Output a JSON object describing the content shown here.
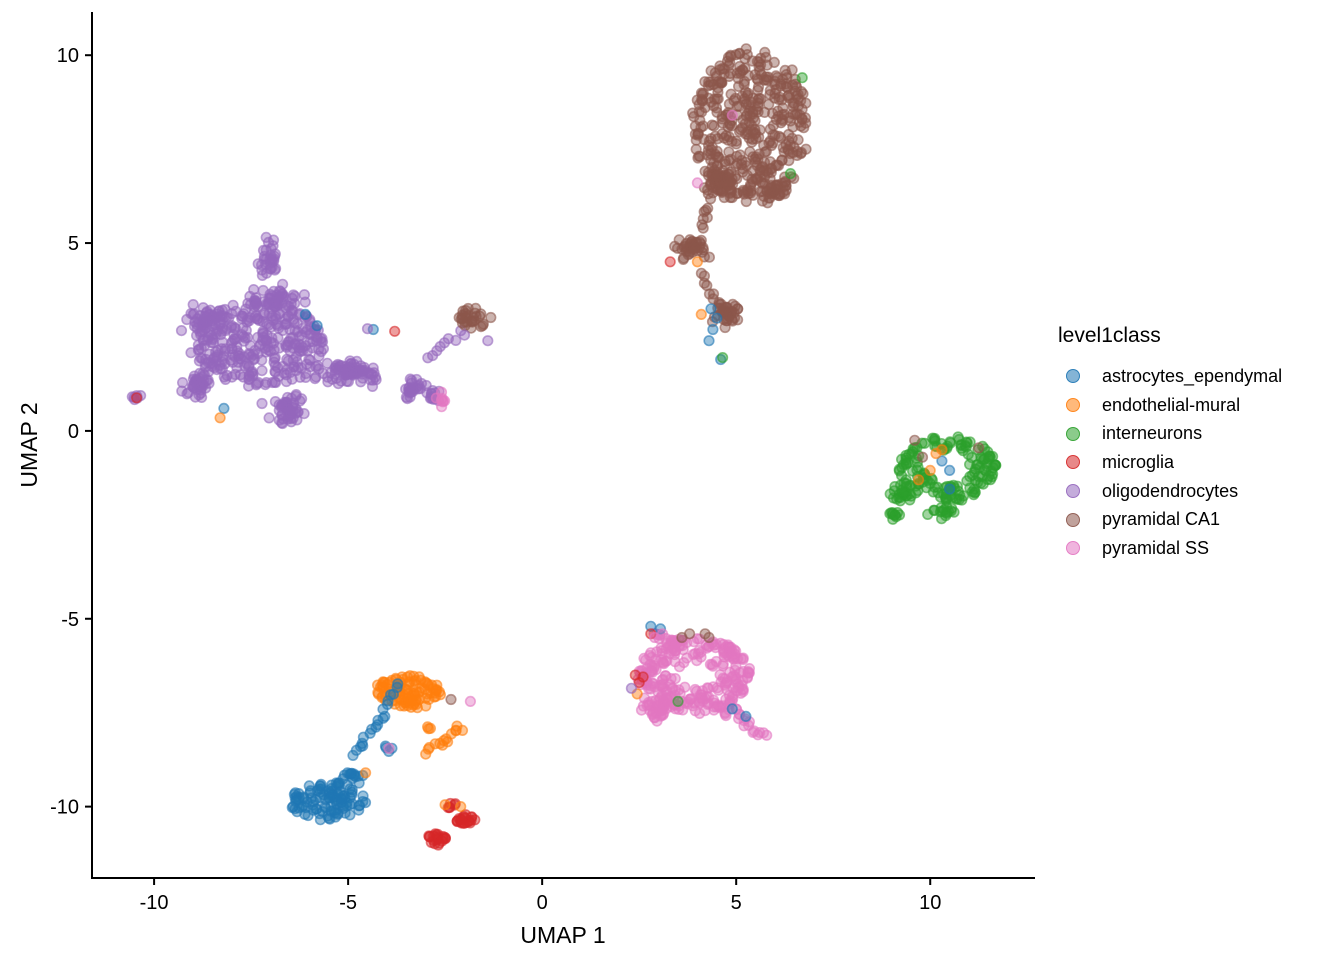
{
  "chart_data": {
    "type": "scatter",
    "subtype": "umap-embedding",
    "title": "",
    "xlabel": "UMAP 1",
    "ylabel": "UMAP 2",
    "xlim": [
      -11.6,
      12.7
    ],
    "ylim": [
      -11.9,
      11.15
    ],
    "x_ticks": [
      -10,
      -5,
      0,
      5,
      10
    ],
    "y_ticks": [
      -10,
      -5,
      0,
      5,
      10
    ],
    "grid": false,
    "background": "#ffffff",
    "axis_color": "#000000",
    "legend_title": "level1class",
    "legend_position": "right",
    "classes": [
      {
        "name": "astrocytes_ependymal",
        "color": "#1f77b4"
      },
      {
        "name": "endothelial-mural",
        "color": "#ff7f0e"
      },
      {
        "name": "interneurons",
        "color": "#2ca02c"
      },
      {
        "name": "microglia",
        "color": "#d62728"
      },
      {
        "name": "oligodendrocytes",
        "color": "#9467bd"
      },
      {
        "name": "pyramidal CA1",
        "color": "#8c564b"
      },
      {
        "name": "pyramidal SS",
        "color": "#e377c2"
      }
    ],
    "clusters": [
      {
        "class": "oligodendrocytes",
        "shape": "disk",
        "cx": -7.3,
        "cy": 2.3,
        "rx": 1.7,
        "ry": 1.15,
        "n": 300
      },
      {
        "class": "oligodendrocytes",
        "shape": "blob",
        "cx": -8.6,
        "cy": 2.9,
        "rx": 0.75,
        "ry": 0.55,
        "n": 55
      },
      {
        "class": "oligodendrocytes",
        "shape": "blob",
        "cx": -7.0,
        "cy": 4.6,
        "rx": 0.4,
        "ry": 0.6,
        "n": 30
      },
      {
        "class": "oligodendrocytes",
        "shape": "blob",
        "cx": -8.9,
        "cy": 1.2,
        "rx": 0.6,
        "ry": 0.45,
        "n": 40
      },
      {
        "class": "oligodendrocytes",
        "shape": "blob",
        "cx": -6.5,
        "cy": 0.6,
        "rx": 0.7,
        "ry": 0.5,
        "n": 50
      },
      {
        "class": "oligodendrocytes",
        "shape": "blob",
        "cx": -6.9,
        "cy": 3.5,
        "rx": 0.9,
        "ry": 0.45,
        "n": 55
      },
      {
        "class": "oligodendrocytes",
        "shape": "blob",
        "cx": -5.0,
        "cy": 1.6,
        "rx": 1.1,
        "ry": 0.4,
        "n": 85
      },
      {
        "class": "oligodendrocytes",
        "shape": "blob",
        "cx": -3.3,
        "cy": 1.15,
        "rx": 0.45,
        "ry": 0.35,
        "n": 25
      },
      {
        "class": "oligodendrocytes",
        "shape": "blob",
        "cx": -2.8,
        "cy": 0.95,
        "rx": 0.3,
        "ry": 0.3,
        "n": 12
      },
      {
        "class": "oligodendrocytes",
        "shape": "blob",
        "cx": -10.5,
        "cy": 0.9,
        "rx": 0.22,
        "ry": 0.12,
        "n": 6
      },
      {
        "class": "oligodendrocytes",
        "shape": "line",
        "x1": -2.95,
        "y1": 1.95,
        "x2": -2.15,
        "y2": 2.6,
        "jitter": 0.12,
        "n": 8
      },
      {
        "class": "pyramidal SS",
        "shape": "blob",
        "cx": -2.55,
        "cy": 0.82,
        "rx": 0.22,
        "ry": 0.28,
        "n": 7
      },
      {
        "class": "pyramidal CA1",
        "shape": "disk",
        "cx": 5.35,
        "cy": 8.1,
        "rx": 1.5,
        "ry": 2.0,
        "n": 400
      },
      {
        "class": "pyramidal CA1",
        "shape": "blob",
        "cx": 4.6,
        "cy": 6.6,
        "rx": 0.5,
        "ry": 0.55,
        "n": 45
      },
      {
        "class": "pyramidal CA1",
        "shape": "blob",
        "cx": 5.9,
        "cy": 6.4,
        "rx": 0.6,
        "ry": 0.4,
        "n": 35
      },
      {
        "class": "pyramidal CA1",
        "shape": "blob",
        "cx": 3.9,
        "cy": 4.85,
        "rx": 0.55,
        "ry": 0.4,
        "n": 40
      },
      {
        "class": "pyramidal CA1",
        "shape": "line",
        "x1": 4.1,
        "y1": 5.4,
        "x2": 4.3,
        "y2": 6.1,
        "jitter": 0.15,
        "n": 8
      },
      {
        "class": "pyramidal CA1",
        "shape": "blob",
        "cx": 4.75,
        "cy": 3.1,
        "rx": 0.55,
        "ry": 0.45,
        "n": 40
      },
      {
        "class": "pyramidal CA1",
        "shape": "line",
        "x1": 4.1,
        "y1": 4.2,
        "x2": 4.4,
        "y2": 3.5,
        "jitter": 0.12,
        "n": 7
      },
      {
        "class": "pyramidal CA1",
        "shape": "blob",
        "cx": -1.8,
        "cy": 3.0,
        "rx": 0.5,
        "ry": 0.35,
        "n": 30
      },
      {
        "class": "interneurons",
        "shape": "ring",
        "cx": 10.45,
        "cy": -1.0,
        "rx": 1.25,
        "ry": 0.85,
        "hole": 0.4,
        "n": 150
      },
      {
        "class": "interneurons",
        "shape": "blob",
        "cx": 9.3,
        "cy": -1.6,
        "rx": 0.4,
        "ry": 0.35,
        "n": 25
      },
      {
        "class": "interneurons",
        "shape": "blob",
        "cx": 9.05,
        "cy": -2.2,
        "rx": 0.28,
        "ry": 0.18,
        "n": 10
      },
      {
        "class": "interneurons",
        "shape": "blob",
        "cx": 10.35,
        "cy": -2.15,
        "rx": 0.5,
        "ry": 0.2,
        "n": 16
      },
      {
        "class": "pyramidal SS",
        "shape": "ring",
        "cx": 3.9,
        "cy": -6.5,
        "rx": 1.45,
        "ry": 1.0,
        "hole": 0.3,
        "n": 250
      },
      {
        "class": "pyramidal SS",
        "shape": "blob",
        "cx": 2.95,
        "cy": -7.4,
        "rx": 0.5,
        "ry": 0.45,
        "n": 40
      },
      {
        "class": "pyramidal SS",
        "shape": "line",
        "x1": 4.6,
        "y1": -7.3,
        "x2": 5.7,
        "y2": -8.1,
        "jitter": 0.22,
        "n": 22
      },
      {
        "class": "pyramidal SS",
        "shape": "blob",
        "cx": 3.4,
        "cy": -5.7,
        "rx": 0.35,
        "ry": 0.25,
        "n": 18
      },
      {
        "class": "pyramidal SS",
        "shape": "blob",
        "cx": 3.0,
        "cy": -5.45,
        "rx": 0.18,
        "ry": 0.12,
        "n": 5
      },
      {
        "class": "endothelial-mural",
        "shape": "disk",
        "cx": -3.5,
        "cy": -6.95,
        "rx": 0.85,
        "ry": 0.45,
        "n": 100
      },
      {
        "class": "endothelial-mural",
        "shape": "line",
        "x1": -2.95,
        "y1": -8.5,
        "x2": -2.05,
        "y2": -7.9,
        "jitter": 0.14,
        "n": 14
      },
      {
        "class": "endothelial-mural",
        "shape": "blob",
        "cx": -2.9,
        "cy": -7.88,
        "rx": 0.12,
        "ry": 0.12,
        "n": 3
      },
      {
        "class": "astrocytes_ependymal",
        "shape": "disk",
        "cx": -5.55,
        "cy": -9.85,
        "rx": 0.95,
        "ry": 0.5,
        "n": 110
      },
      {
        "class": "astrocytes_ependymal",
        "shape": "blob",
        "cx": -4.95,
        "cy": -9.2,
        "rx": 0.3,
        "ry": 0.22,
        "n": 14
      },
      {
        "class": "astrocytes_ependymal",
        "shape": "line",
        "x1": -4.85,
        "y1": -8.6,
        "x2": -4.1,
        "y2": -7.55,
        "jitter": 0.1,
        "n": 13
      },
      {
        "class": "astrocytes_ependymal",
        "shape": "line",
        "x1": -4.05,
        "y1": -7.4,
        "x2": -3.7,
        "y2": -6.75,
        "jitter": 0.1,
        "n": 7
      },
      {
        "class": "astrocytes_ependymal",
        "shape": "blob",
        "cx": -4.0,
        "cy": -8.45,
        "rx": 0.15,
        "ry": 0.12,
        "n": 4
      },
      {
        "class": "microglia",
        "shape": "blob",
        "cx": -2.05,
        "cy": -10.35,
        "rx": 0.35,
        "ry": 0.28,
        "n": 22
      },
      {
        "class": "microglia",
        "shape": "blob",
        "cx": -2.7,
        "cy": -10.9,
        "rx": 0.38,
        "ry": 0.26,
        "n": 22
      },
      {
        "class": "microglia",
        "shape": "blob",
        "cx": -2.35,
        "cy": -10.0,
        "rx": 0.18,
        "ry": 0.14,
        "n": 6
      }
    ],
    "outliers": [
      {
        "class": "astrocytes_ependymal",
        "x": -6.1,
        "y": 3.1
      },
      {
        "class": "astrocytes_ependymal",
        "x": -5.8,
        "y": 2.8
      },
      {
        "class": "astrocytes_ependymal",
        "x": -4.35,
        "y": 2.7
      },
      {
        "class": "astrocytes_ependymal",
        "x": -8.2,
        "y": 0.6
      },
      {
        "class": "astrocytes_ependymal",
        "x": 4.35,
        "y": 3.25
      },
      {
        "class": "astrocytes_ependymal",
        "x": 4.5,
        "y": 3.0
      },
      {
        "class": "astrocytes_ependymal",
        "x": 4.4,
        "y": 2.7
      },
      {
        "class": "astrocytes_ependymal",
        "x": 4.3,
        "y": 2.4
      },
      {
        "class": "astrocytes_ependymal",
        "x": 4.6,
        "y": 1.9
      },
      {
        "class": "astrocytes_ependymal",
        "x": 10.3,
        "y": -0.8
      },
      {
        "class": "astrocytes_ependymal",
        "x": 10.5,
        "y": -1.05
      },
      {
        "class": "astrocytes_ependymal",
        "x": 10.5,
        "y": -1.55
      },
      {
        "class": "astrocytes_ependymal",
        "x": 2.8,
        "y": -5.2
      },
      {
        "class": "astrocytes_ependymal",
        "x": 3.05,
        "y": -5.27
      },
      {
        "class": "astrocytes_ependymal",
        "x": 4.9,
        "y": -7.4
      },
      {
        "class": "astrocytes_ependymal",
        "x": 5.25,
        "y": -7.6
      },
      {
        "class": "endothelial-mural",
        "x": -8.3,
        "y": 0.35
      },
      {
        "class": "endothelial-mural",
        "x": 4.0,
        "y": 4.5
      },
      {
        "class": "endothelial-mural",
        "x": 4.1,
        "y": 3.1
      },
      {
        "class": "endothelial-mural",
        "x": 10.3,
        "y": -0.5
      },
      {
        "class": "endothelial-mural",
        "x": 10.15,
        "y": -0.6
      },
      {
        "class": "endothelial-mural",
        "x": 10.0,
        "y": -1.05
      },
      {
        "class": "endothelial-mural",
        "x": 9.7,
        "y": -1.3
      },
      {
        "class": "endothelial-mural",
        "x": 2.45,
        "y": -7.0
      },
      {
        "class": "endothelial-mural",
        "x": -4.55,
        "y": -9.1
      },
      {
        "class": "endothelial-mural",
        "x": -2.5,
        "y": -9.95
      },
      {
        "class": "endothelial-mural",
        "x": -2.1,
        "y": -10.0
      },
      {
        "class": "interneurons",
        "x": 6.7,
        "y": 9.4
      },
      {
        "class": "interneurons",
        "x": 6.4,
        "y": 6.85
      },
      {
        "class": "interneurons",
        "x": 4.65,
        "y": 1.95
      },
      {
        "class": "interneurons",
        "x": 3.5,
        "y": -7.2
      },
      {
        "class": "microglia",
        "x": -10.45,
        "y": 0.88
      },
      {
        "class": "microglia",
        "x": -3.8,
        "y": 2.65
      },
      {
        "class": "microglia",
        "x": 3.3,
        "y": 4.5
      },
      {
        "class": "microglia",
        "x": 2.4,
        "y": -6.5
      },
      {
        "class": "microglia",
        "x": 2.6,
        "y": -6.55
      },
      {
        "class": "microglia",
        "x": 2.5,
        "y": -6.7
      },
      {
        "class": "microglia",
        "x": 2.8,
        "y": -5.4
      },
      {
        "class": "oligodendrocytes",
        "x": -2.0,
        "y": 2.55
      },
      {
        "class": "oligodendrocytes",
        "x": -1.4,
        "y": 2.4
      },
      {
        "class": "oligodendrocytes",
        "x": -4.5,
        "y": 2.72
      },
      {
        "class": "oligodendrocytes",
        "x": 2.3,
        "y": -6.85
      },
      {
        "class": "pyramidal CA1",
        "x": 9.6,
        "y": -0.25
      },
      {
        "class": "pyramidal CA1",
        "x": 11.25,
        "y": -0.45
      },
      {
        "class": "pyramidal CA1",
        "x": 9.8,
        "y": -0.7
      },
      {
        "class": "pyramidal CA1",
        "x": 3.6,
        "y": -5.5
      },
      {
        "class": "pyramidal CA1",
        "x": 3.8,
        "y": -5.4
      },
      {
        "class": "pyramidal CA1",
        "x": 4.2,
        "y": -5.4
      },
      {
        "class": "pyramidal CA1",
        "x": 4.3,
        "y": -5.5
      },
      {
        "class": "pyramidal CA1",
        "x": -2.35,
        "y": -7.15
      },
      {
        "class": "pyramidal SS",
        "x": 4.9,
        "y": 8.4
      },
      {
        "class": "pyramidal SS",
        "x": 4.0,
        "y": 6.6
      },
      {
        "class": "pyramidal SS",
        "x": -1.85,
        "y": -7.2
      },
      {
        "class": "pyramidal SS",
        "x": -3.95,
        "y": -8.45
      },
      {
        "class": "pyramidal SS",
        "x": 3.1,
        "y": -5.4
      },
      {
        "class": "pyramidal SS",
        "x": 2.9,
        "y": -5.5
      },
      {
        "class": "pyramidal SS",
        "x": -2.55,
        "y": 0.8
      }
    ]
  }
}
